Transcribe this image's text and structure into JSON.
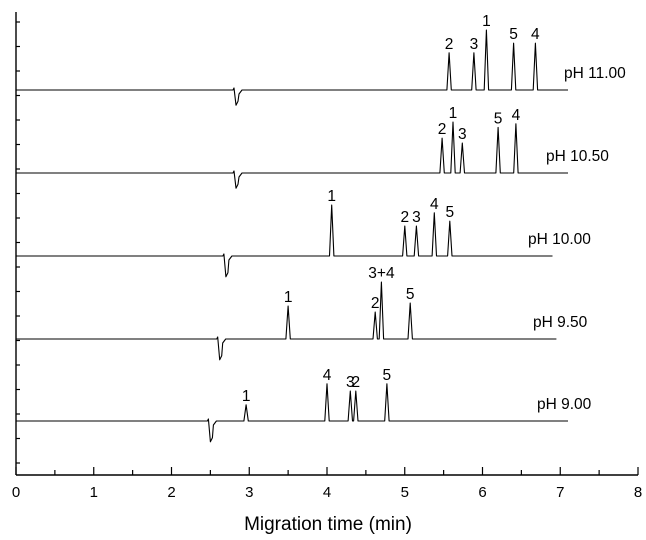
{
  "chart_data": {
    "type": "line",
    "title": "",
    "xlabel": "Migration time (min)",
    "ylabel": "",
    "xlim": [
      0,
      8
    ],
    "x_ticks": [
      "0",
      "1",
      "2",
      "3",
      "4",
      "5",
      "6",
      "7",
      "8"
    ],
    "y_ticks_visible": true,
    "grid": false,
    "legend": "none",
    "series": [
      {
        "name": "pH 11.00",
        "x_start": 0,
        "x_end": 7.1,
        "dip": {
          "x": 2.83,
          "depth": 0.38
        },
        "peaks": [
          {
            "label": "2",
            "x": 5.57,
            "height": 0.62
          },
          {
            "label": "3",
            "x": 5.89,
            "height": 0.62
          },
          {
            "label": "1",
            "x": 6.05,
            "height": 1.0
          },
          {
            "label": "5",
            "x": 6.4,
            "height": 0.78
          },
          {
            "label": "4",
            "x": 6.68,
            "height": 0.78
          }
        ]
      },
      {
        "name": "pH 10.50",
        "x_start": 0,
        "x_end": 7.1,
        "dip": {
          "x": 2.83,
          "depth": 0.38
        },
        "peaks": [
          {
            "label": "2",
            "x": 5.48,
            "height": 0.58
          },
          {
            "label": "1",
            "x": 5.62,
            "height": 0.85
          },
          {
            "label": "3",
            "x": 5.74,
            "height": 0.5
          },
          {
            "label": "5",
            "x": 6.2,
            "height": 0.76
          },
          {
            "label": "4",
            "x": 6.43,
            "height": 0.82
          }
        ]
      },
      {
        "name": "pH 10.00",
        "x_start": 0,
        "x_end": 6.9,
        "dip": {
          "x": 2.7,
          "depth": 0.52
        },
        "peaks": [
          {
            "label": "1",
            "x": 4.06,
            "height": 0.85
          },
          {
            "label": "2",
            "x": 5.0,
            "height": 0.5
          },
          {
            "label": "3",
            "x": 5.15,
            "height": 0.5
          },
          {
            "label": "4",
            "x": 5.38,
            "height": 0.72
          },
          {
            "label": "5",
            "x": 5.58,
            "height": 0.58
          }
        ]
      },
      {
        "name": "pH 9.50",
        "x_start": 0,
        "x_end": 6.95,
        "dip": {
          "x": 2.62,
          "depth": 0.52
        },
        "peaks": [
          {
            "label": "1",
            "x": 3.5,
            "height": 0.55
          },
          {
            "label": "2",
            "x": 4.62,
            "height": 0.45
          },
          {
            "label": "3+4",
            "x": 4.7,
            "height": 0.95
          },
          {
            "label": "5",
            "x": 5.07,
            "height": 0.6
          }
        ]
      },
      {
        "name": "pH 9.00",
        "x_start": 0,
        "x_end": 7.1,
        "dip": {
          "x": 2.5,
          "depth": 0.52
        },
        "peaks": [
          {
            "label": "1",
            "x": 2.96,
            "height": 0.27
          },
          {
            "label": "4",
            "x": 4.0,
            "height": 0.62
          },
          {
            "label": "3",
            "x": 4.3,
            "height": 0.5
          },
          {
            "label": "2",
            "x": 4.37,
            "height": 0.5
          },
          {
            "label": "5",
            "x": 4.77,
            "height": 0.62
          }
        ]
      }
    ]
  }
}
